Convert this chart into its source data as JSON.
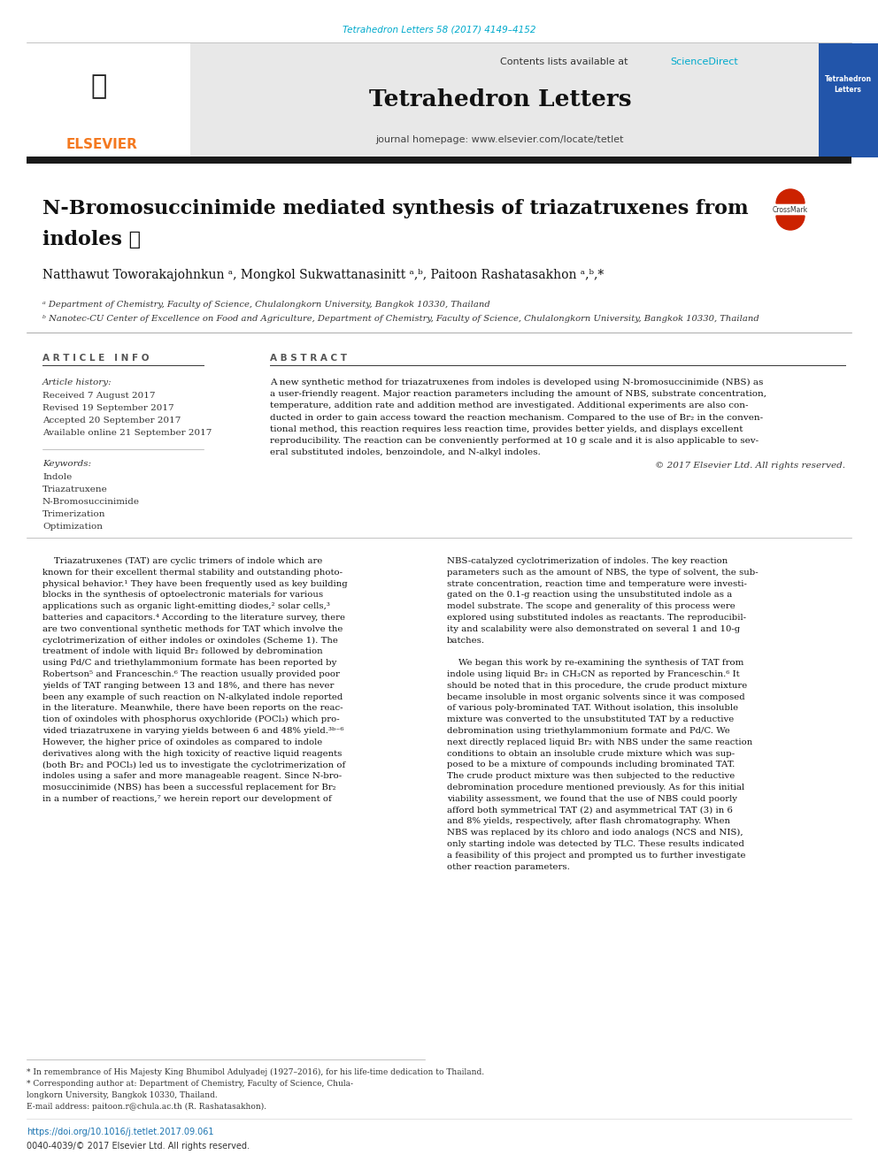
{
  "page_bg": "#ffffff",
  "top_citation": "Tetrahedron Letters 58 (2017) 4149–4152",
  "top_citation_color": "#00aacc",
  "journal_header_bg": "#e8e8e8",
  "header_line1": "Contents lists available at ",
  "header_sciencedirect": "ScienceDirect",
  "header_sciencedirect_color": "#00aacc",
  "journal_name": "Tetrahedron Letters",
  "journal_homepage": "journal homepage: www.elsevier.com/locate/tetlet",
  "thick_bar_color": "#1a1a1a",
  "article_title_line1": "N-Bromosuccinimide mediated synthesis of triazatruxenes from",
  "article_title_line2": "indoles",
  "authors": "Natthawut Toworakajohnkun ᵃ, Mongkol Sukwattanasinitt ᵃ,ᵇ, Paitoon Rashatasakhon ᵃ,ᵇ,*",
  "affil_a": "ᵃ Department of Chemistry, Faculty of Science, Chulalongkorn University, Bangkok 10330, Thailand",
  "affil_b": "ᵇ Nanotec-CU Center of Excellence on Food and Agriculture, Department of Chemistry, Faculty of Science, Chulalongkorn University, Bangkok 10330, Thailand",
  "article_info_title": "A R T I C L E   I N F O",
  "abstract_title": "A B S T R A C T",
  "article_history_title": "Article history:",
  "received": "Received 7 August 2017",
  "revised": "Revised 19 September 2017",
  "accepted": "Accepted 20 September 2017",
  "available": "Available online 21 September 2017",
  "keywords_title": "Keywords:",
  "keywords": [
    "Indole",
    "Triazatruxene",
    "N-Bromosuccinimide",
    "Trimerization",
    "Optimization"
  ],
  "abstract_text": [
    "A new synthetic method for triazatruxenes from indoles is developed using N-bromosuccinimide (NBS) as",
    "a user-friendly reagent. Major reaction parameters including the amount of NBS, substrate concentration,",
    "temperature, addition rate and addition method are investigated. Additional experiments are also con-",
    "ducted in order to gain access toward the reaction mechanism. Compared to the use of Br₂ in the conven-",
    "tional method, this reaction requires less reaction time, provides better yields, and displays excellent",
    "reproducibility. The reaction can be conveniently performed at 10 g scale and it is also applicable to sev-",
    "eral substituted indoles, benzoindole, and N-alkyl indoles."
  ],
  "copyright": "© 2017 Elsevier Ltd. All rights reserved.",
  "body_col1": [
    "    Triazatruxenes (TAT) are cyclic trimers of indole which are",
    "known for their excellent thermal stability and outstanding photo-",
    "physical behavior.¹ They have been frequently used as key building",
    "blocks in the synthesis of optoelectronic materials for various",
    "applications such as organic light-emitting diodes,² solar cells,³",
    "batteries and capacitors.⁴ According to the literature survey, there",
    "are two conventional synthetic methods for TAT which involve the",
    "cyclotrimerization of either indoles or oxindoles (Scheme 1). The",
    "treatment of indole with liquid Br₂ followed by debromination",
    "using Pd/C and triethylammonium formate has been reported by",
    "Robertson⁵ and Franceschin.⁶ The reaction usually provided poor",
    "yields of TAT ranging between 13 and 18%, and there has never",
    "been any example of such reaction on N-alkylated indole reported",
    "in the literature. Meanwhile, there have been reports on the reac-",
    "tion of oxindoles with phosphorus oxychloride (POCl₃) which pro-",
    "vided triazatruxene in varying yields between 6 and 48% yield.³ᵇ⁻⁶",
    "However, the higher price of oxindoles as compared to indole",
    "derivatives along with the high toxicity of reactive liquid reagents",
    "(both Br₂ and POCl₃) led us to investigate the cyclotrimerization of",
    "indoles using a safer and more manageable reagent. Since N-bro-",
    "mosuccinimide (NBS) has been a successful replacement for Br₂",
    "in a number of reactions,⁷ we herein report our development of"
  ],
  "body_col2": [
    "NBS-catalyzed cyclotrimerization of indoles. The key reaction",
    "parameters such as the amount of NBS, the type of solvent, the sub-",
    "strate concentration, reaction time and temperature were investi-",
    "gated on the 0.1-g reaction using the unsubstituted indole as a",
    "model substrate. The scope and generality of this process were",
    "explored using substituted indoles as reactants. The reproducibil-",
    "ity and scalability were also demonstrated on several 1 and 10-g",
    "batches.",
    "",
    "    We began this work by re-examining the synthesis of TAT from",
    "indole using liquid Br₂ in CH₃CN as reported by Franceschin.⁶ It",
    "should be noted that in this procedure, the crude product mixture",
    "became insoluble in most organic solvents since it was composed",
    "of various poly-brominated TAT. Without isolation, this insoluble",
    "mixture was converted to the unsubstituted TAT by a reductive",
    "debromination using triethylammonium formate and Pd/C. We",
    "next directly replaced liquid Br₂ with NBS under the same reaction",
    "conditions to obtain an insoluble crude mixture which was sup-",
    "posed to be a mixture of compounds including brominated TAT.",
    "The crude product mixture was then subjected to the reductive",
    "debromination procedure mentioned previously. As for this initial",
    "viability assessment, we found that the use of NBS could poorly",
    "afford both symmetrical TAT (2) and asymmetrical TAT (3) in 6",
    "and 8% yields, respectively, after flash chromatography. When",
    "NBS was replaced by its chloro and iodo analogs (NCS and NIS),",
    "only starting indole was detected by TLC. These results indicated",
    "a feasibility of this project and prompted us to further investigate",
    "other reaction parameters."
  ],
  "footnote1": "* In remembrance of His Majesty King Bhumibol Adulyadej (1927–2016), for his life-time dedication to Thailand.",
  "footnote2": "* Corresponding author at: Department of Chemistry, Faculty of Science, Chula-",
  "footnote2b": "longkorn University, Bangkok 10330, Thailand.",
  "email_label": "E-mail address: ",
  "email": "paitoon.r@chula.ac.th",
  "email_note": " (R. Rashatasakhon).",
  "doi": "https://doi.org/10.1016/j.tetlet.2017.09.061",
  "issn": "0040-4039/© 2017 Elsevier Ltd. All rights reserved.",
  "link_color": "#1a73b0",
  "elsevier_color": "#f47920",
  "section_title_color": "#555555"
}
